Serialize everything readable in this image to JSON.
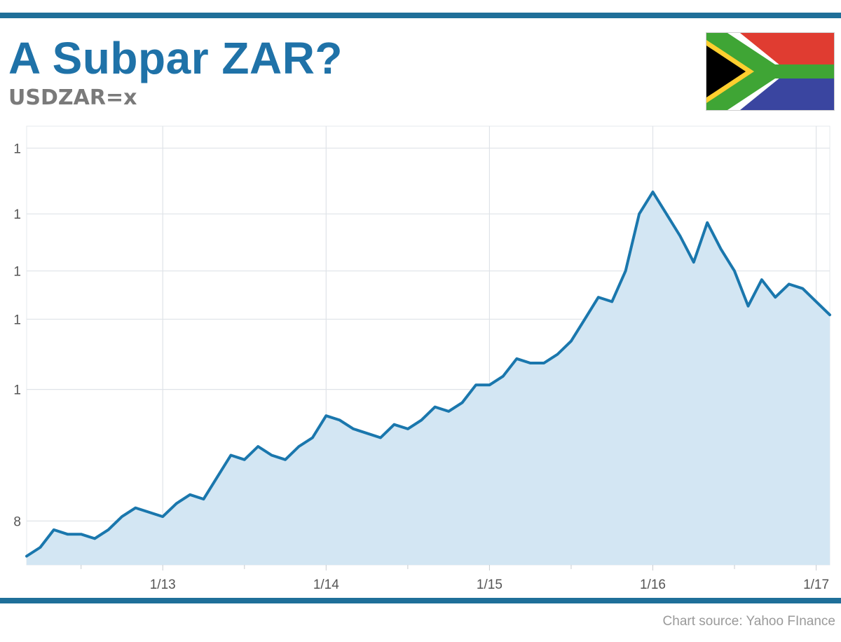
{
  "header": {
    "title": "A Subpar ZAR?",
    "subtitle": "USDZAR=x",
    "flag_icon": "south-africa-flag-icon"
  },
  "footer": {
    "source": "Chart source:  Yahoo FInance"
  },
  "colors": {
    "rule": "#1f6f99",
    "title": "#1f72a8",
    "line": "#1a77ad",
    "fill": "#d3e6f3",
    "grid": "#dfe3e8"
  },
  "chart_data": {
    "type": "area",
    "title": "A Subpar ZAR?",
    "subtitle": "USDZAR=x",
    "xlabel": "",
    "ylabel": "",
    "grid": true,
    "x_tick_labels": [
      "1/13",
      "1/14",
      "1/15",
      "1/16",
      "1/17"
    ],
    "y_tick_labels": [
      "1",
      "1",
      "1",
      "1",
      "1",
      "8"
    ],
    "xlim": [
      "2012-03",
      "2017-02"
    ],
    "ylim": [
      7.5,
      17.5
    ],
    "series": [
      {
        "x": [
          "2012-03",
          "2012-04",
          "2012-05",
          "2012-06",
          "2012-07",
          "2012-08",
          "2012-09",
          "2012-10",
          "2012-11",
          "2012-12",
          "2013-01",
          "2013-02",
          "2013-03",
          "2013-04",
          "2013-05",
          "2013-06",
          "2013-07",
          "2013-08",
          "2013-09",
          "2013-10",
          "2013-11",
          "2013-12",
          "2014-01",
          "2014-02",
          "2014-03",
          "2014-04",
          "2014-05",
          "2014-06",
          "2014-07",
          "2014-08",
          "2014-09",
          "2014-10",
          "2014-11",
          "2014-12",
          "2015-01",
          "2015-02",
          "2015-03",
          "2015-04",
          "2015-05",
          "2015-06",
          "2015-07",
          "2015-08",
          "2015-09",
          "2015-10",
          "2015-11",
          "2015-12",
          "2016-01",
          "2016-02",
          "2016-03",
          "2016-04",
          "2016-05",
          "2016-06",
          "2016-07",
          "2016-08",
          "2016-09",
          "2016-10",
          "2016-11",
          "2016-12",
          "2017-01",
          "2017-02"
        ],
        "values": [
          7.7,
          7.9,
          8.3,
          8.2,
          8.2,
          8.1,
          8.3,
          8.6,
          8.8,
          8.7,
          8.6,
          8.9,
          9.1,
          9.0,
          9.5,
          10.0,
          9.9,
          10.2,
          10.0,
          9.9,
          10.2,
          10.4,
          10.9,
          10.8,
          10.6,
          10.5,
          10.4,
          10.7,
          10.6,
          10.8,
          11.1,
          11.0,
          11.2,
          11.6,
          11.6,
          11.8,
          12.2,
          12.1,
          12.1,
          12.3,
          12.6,
          13.1,
          13.6,
          13.5,
          14.2,
          15.5,
          16.0,
          15.5,
          15.0,
          14.4,
          15.3,
          14.7,
          14.2,
          13.4,
          14.0,
          13.6,
          13.9,
          13.8,
          13.5,
          13.2
        ]
      }
    ]
  }
}
